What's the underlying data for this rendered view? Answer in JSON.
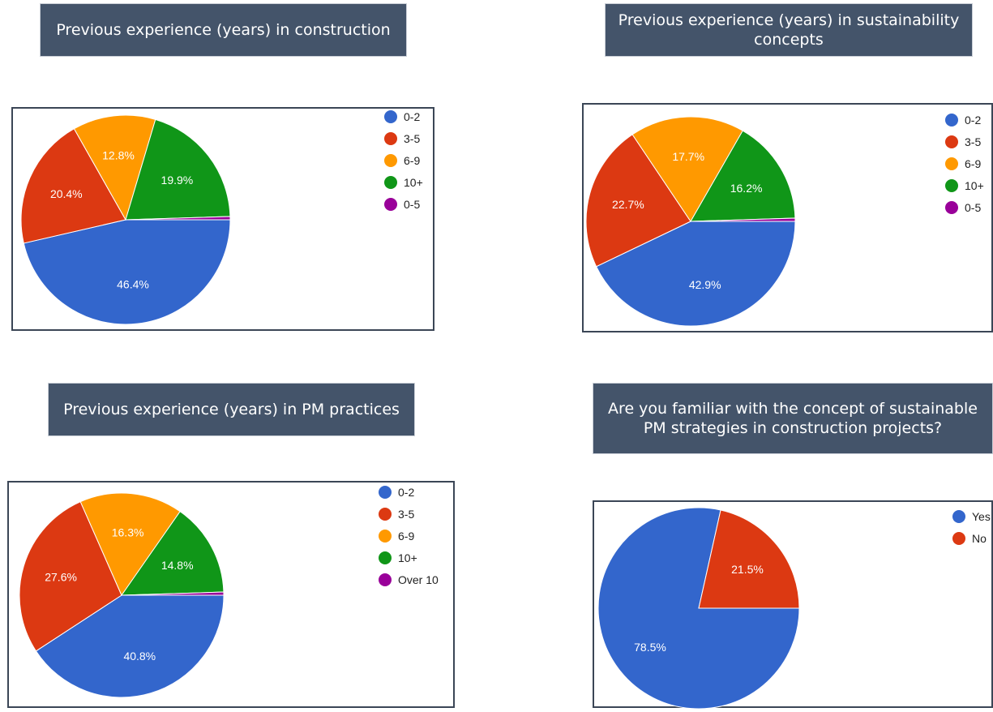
{
  "chart_data": [
    {
      "type": "pie",
      "title": "Previous experience (years) in construction",
      "categories": [
        "0-2",
        "3-5",
        "6-9",
        "10+",
        "0-5"
      ],
      "values": [
        46.4,
        20.4,
        12.8,
        19.9,
        0.5
      ],
      "labels": [
        "46.4%",
        "20.4%",
        "12.8%",
        "19.9%",
        ""
      ],
      "colors": [
        "#3366cc",
        "#dc3912",
        "#ff9900",
        "#109618",
        "#990099"
      ],
      "legend": "right"
    },
    {
      "type": "pie",
      "title": "Previous experience (years) in sustainability concepts",
      "categories": [
        "0-2",
        "3-5",
        "6-9",
        "10+",
        "0-5"
      ],
      "values": [
        42.9,
        22.7,
        17.7,
        16.2,
        0.5
      ],
      "labels": [
        "42.9%",
        "22.7%",
        "17.7%",
        "16.2%",
        ""
      ],
      "colors": [
        "#3366cc",
        "#dc3912",
        "#ff9900",
        "#109618",
        "#990099"
      ],
      "legend": "right"
    },
    {
      "type": "pie",
      "title": "Previous experience (years) in PM practices",
      "categories": [
        "0-2",
        "3-5",
        "6-9",
        "10+",
        "Over 10"
      ],
      "values": [
        40.8,
        27.6,
        16.3,
        14.8,
        0.5
      ],
      "labels": [
        "40.8%",
        "27.6%",
        "16.3%",
        "14.8%",
        ""
      ],
      "colors": [
        "#3366cc",
        "#dc3912",
        "#ff9900",
        "#109618",
        "#990099"
      ],
      "legend": "right"
    },
    {
      "type": "pie",
      "title": "Are you familiar with the concept of sustainable PM strategies in construction projects?",
      "categories": [
        "Yes",
        "No"
      ],
      "values": [
        78.5,
        21.5
      ],
      "labels": [
        "78.5%",
        "21.5%"
      ],
      "colors": [
        "#3366cc",
        "#dc3912"
      ],
      "legend": "right"
    }
  ]
}
